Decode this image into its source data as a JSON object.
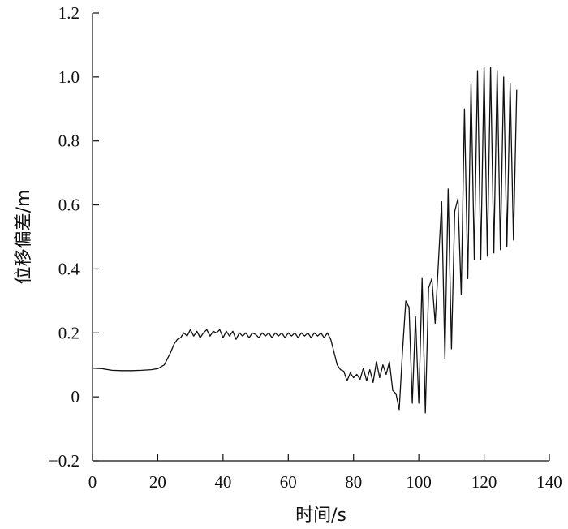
{
  "chart_data": {
    "type": "line",
    "xlabel": "时间/s",
    "ylabel": "位移偏差/m",
    "xlim": [
      0,
      140
    ],
    "ylim": [
      -0.2,
      1.2
    ],
    "x_ticks": [
      "0",
      "20",
      "40",
      "60",
      "80",
      "100",
      "120",
      "140"
    ],
    "y_ticks": [
      "−0.2",
      "0",
      "0.2",
      "0.4",
      "0.6",
      "0.8",
      "1.0",
      "1.2"
    ],
    "x_tick_values": [
      0,
      20,
      40,
      60,
      80,
      100,
      120,
      140
    ],
    "y_tick_values": [
      -0.2,
      0,
      0.2,
      0.4,
      0.6,
      0.8,
      1.0,
      1.2
    ],
    "grid": false,
    "legend": "none",
    "series": [
      {
        "color": "#111111",
        "x": [
          0,
          3,
          6,
          9,
          12,
          15,
          18,
          20,
          22,
          23,
          24,
          25,
          26,
          27,
          28,
          29,
          30,
          31,
          32,
          33,
          34,
          35,
          36,
          37,
          38,
          39,
          40,
          41,
          42,
          43,
          44,
          45,
          46,
          47,
          48,
          49,
          50,
          51,
          52,
          53,
          54,
          55,
          56,
          57,
          58,
          59,
          60,
          61,
          62,
          63,
          64,
          65,
          66,
          67,
          68,
          69,
          70,
          71,
          72,
          73,
          74,
          75,
          76,
          77,
          78,
          79,
          80,
          81,
          82,
          83,
          84,
          85,
          86,
          87,
          88,
          89,
          90,
          91,
          92,
          93,
          94,
          95,
          96,
          97,
          98,
          99,
          100,
          101,
          102,
          103,
          104,
          105,
          106,
          107,
          108,
          109,
          110,
          111,
          112,
          113,
          114,
          115,
          116,
          117,
          118,
          119,
          120,
          121,
          122,
          123,
          124,
          125,
          126,
          127,
          128,
          129,
          130
        ],
        "y": [
          0.09,
          0.088,
          0.083,
          0.082,
          0.082,
          0.083,
          0.085,
          0.088,
          0.1,
          0.12,
          0.14,
          0.165,
          0.18,
          0.185,
          0.2,
          0.19,
          0.21,
          0.19,
          0.205,
          0.185,
          0.2,
          0.21,
          0.19,
          0.205,
          0.2,
          0.21,
          0.185,
          0.205,
          0.19,
          0.205,
          0.18,
          0.2,
          0.19,
          0.2,
          0.185,
          0.2,
          0.195,
          0.185,
          0.2,
          0.19,
          0.2,
          0.185,
          0.2,
          0.19,
          0.2,
          0.185,
          0.2,
          0.19,
          0.2,
          0.185,
          0.2,
          0.19,
          0.2,
          0.185,
          0.2,
          0.19,
          0.2,
          0.185,
          0.2,
          0.18,
          0.14,
          0.1,
          0.085,
          0.08,
          0.05,
          0.075,
          0.06,
          0.07,
          0.055,
          0.09,
          0.05,
          0.085,
          0.045,
          0.11,
          0.06,
          0.1,
          0.07,
          0.11,
          0.02,
          0.01,
          -0.04,
          0.14,
          0.3,
          0.28,
          -0.02,
          0.25,
          -0.02,
          0.37,
          -0.05,
          0.34,
          0.37,
          0.23,
          0.42,
          0.61,
          0.12,
          0.65,
          0.15,
          0.58,
          0.62,
          0.32,
          0.9,
          0.37,
          0.98,
          0.43,
          1.02,
          0.43,
          1.03,
          0.44,
          1.03,
          0.45,
          1.02,
          0.46,
          1.0,
          0.47,
          0.98,
          0.49,
          0.96
        ]
      }
    ]
  }
}
